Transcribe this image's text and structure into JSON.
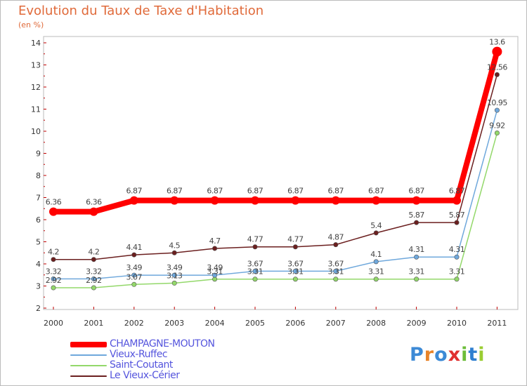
{
  "title": "Evolution du Taux de Taxe d'Habitation",
  "subtitle": "(en %)",
  "logo": {
    "text": "Proxiti",
    "letter_colors": [
      "#3d8ad6",
      "#e8842a",
      "#3d8ad6",
      "#e03030",
      "#6cbd3a",
      "#2f7fd0",
      "#9acd32"
    ]
  },
  "chart_data": {
    "type": "line",
    "x": [
      "2000",
      "2001",
      "2002",
      "2003",
      "2004",
      "2005",
      "2006",
      "2007",
      "2008",
      "2009",
      "2010",
      "2011"
    ],
    "ylim": [
      2,
      14
    ],
    "yticks": [
      "2",
      "3",
      "4",
      "5",
      "6",
      "7",
      "8",
      "9",
      "10",
      "11",
      "12",
      "13",
      "14"
    ],
    "grid": false,
    "legend_position": "bottom-left",
    "series": [
      {
        "name": "CHAMPAGNE-MOUTON",
        "color": "#ff0000",
        "values": [
          6.36,
          6.36,
          6.87,
          6.87,
          6.87,
          6.87,
          6.87,
          6.87,
          6.87,
          6.87,
          6.87,
          13.6
        ],
        "labels": [
          "6.36",
          "6.36",
          "6.87",
          "6.87",
          "6.87",
          "6.87",
          "6.87",
          "6.87",
          "6.87",
          "6.87",
          "6.87",
          "13.6"
        ]
      },
      {
        "name": "Vieux-Ruffec",
        "color": "#6fa8dc",
        "values": [
          3.32,
          3.32,
          3.49,
          3.49,
          3.49,
          3.67,
          3.67,
          3.67,
          4.1,
          4.31,
          4.31,
          10.95
        ],
        "labels": [
          "3.32",
          "3.32",
          "3.49",
          "3.49",
          "3.49",
          "3.67",
          "3.67",
          "3.67",
          "4.1",
          "4.31",
          "4.31",
          "10.95"
        ]
      },
      {
        "name": "Saint-Coutant",
        "color": "#93d86a",
        "values": [
          2.92,
          2.92,
          3.07,
          3.13,
          3.31,
          3.31,
          3.31,
          3.31,
          3.31,
          3.31,
          3.31,
          9.92
        ],
        "labels": [
          "2.92",
          "2.92",
          "3.07",
          "3.13",
          "3.31",
          "3.31",
          "3.31",
          "3.31",
          "3.31",
          "3.31",
          "3.31",
          "9.92"
        ]
      },
      {
        "name": "Le Vieux-Cérier",
        "color": "#6b1f1f",
        "values": [
          4.2,
          4.2,
          4.41,
          4.5,
          4.7,
          4.77,
          4.77,
          4.87,
          5.4,
          5.87,
          5.87,
          12.56
        ],
        "labels": [
          "4.2",
          "4.2",
          "4.41",
          "4.5",
          "4.7",
          "4.77",
          "4.77",
          "4.87",
          "5.4",
          "5.87",
          "5.87",
          "12.56"
        ]
      }
    ]
  }
}
